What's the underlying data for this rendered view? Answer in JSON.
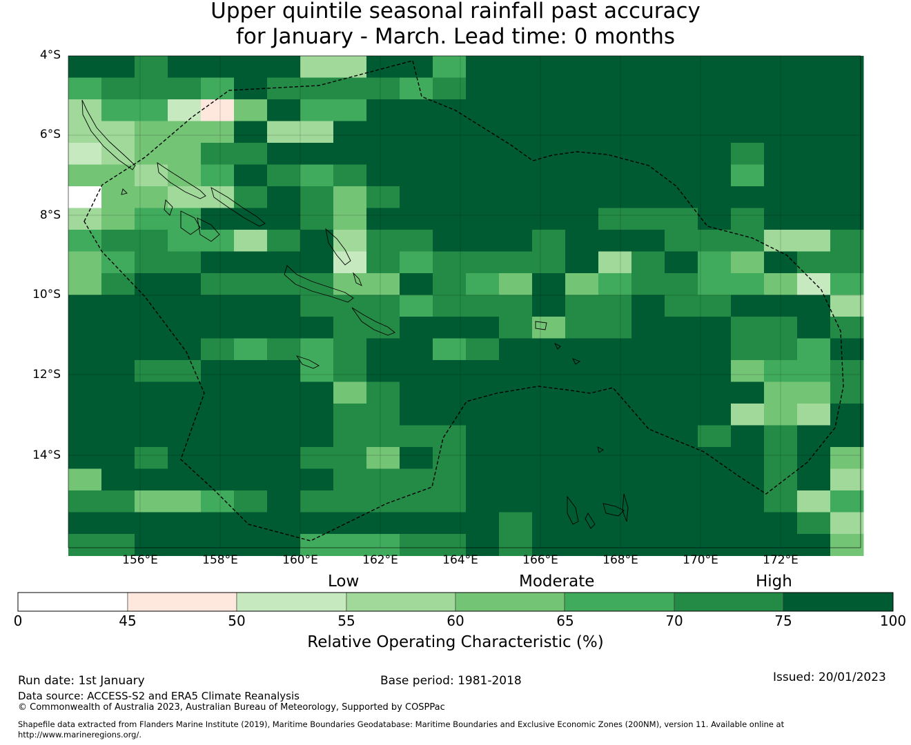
{
  "title_line1": "Upper quintile seasonal rainfall past accuracy",
  "title_line2": "for January - March. Lead time: 0 months",
  "lat_labels": [
    "4°S",
    "6°S",
    "8°S",
    "10°S",
    "12°S",
    "14°S"
  ],
  "lon_labels": [
    "156°E",
    "158°E",
    "160°E",
    "162°E",
    "164°E",
    "166°E",
    "168°E",
    "170°E",
    "172°E"
  ],
  "colorbar": {
    "categories": [
      "Low",
      "Moderate",
      "High"
    ],
    "ticks": [
      "0",
      "45",
      "50",
      "55",
      "60",
      "65",
      "70",
      "75",
      "100"
    ],
    "colors": [
      "#ffffff",
      "#fee8de",
      "#c7e9c0",
      "#a1d99b",
      "#74c476",
      "#41ab5d",
      "#238b45",
      "#005a32"
    ],
    "title": "Relative Operating Characteristic (%)"
  },
  "footer": {
    "run_date": "Run date: 1st January",
    "base_period": "Base period: 1981-2018",
    "issued": "Issued: 20/01/2023",
    "data_source": "Data source: ACCESS-S2 and ERA5 Climate Reanalysis",
    "copyright": "© Commonwealth of Australia 2023, Australian Bureau of Meteorology, Supported by COSPPac",
    "shapefile_line1": "Shapefile data extracted from Flanders Marine Institute (2019), Maritime Boundaries Geodatabase: Maritime Boundaries and Exclusive Economic Zones (200NM), version 11. Available online at",
    "shapefile_line2": "http://www.marineregions.org/."
  },
  "map_data": {
    "lon_range": [
      154.2,
      174.0
    ],
    "lat_range": [
      -3.8,
      -16.1
    ],
    "cell_deg": 0.83,
    "columns": 24,
    "rows": 23,
    "grid": [
      "776777733775777777777777",
      "566657666656777777777777",
      "355214755777777777777777",
      "334447337777777777777777",
      "234466777777777777776777",
      "443457656777777777775777",
      "044336764677777777777777",
      "345577764777777766676777",
      "566553673667776777666336",
      "456677772656666736754766",
      "467766664476547456655425",
      "777777766656667667667773",
      "777777776677764667776676",
      "777765656775677777776657",
      "776677756777777777774556",
      "777777774677777777777446",
      "777777776677777777773437",
      "777777776666777777767677",
      "776777766476777777777674",
      "477777776666777777777673",
      "664456766666777777777635",
      "777777777777767777777763",
      "667777755566767777777774"
    ],
    "color_key": [
      "#ffffff",
      "#fee8de",
      "#c7e9c0",
      "#a1d99b",
      "#74c476",
      "#41ab5d",
      "#238b45",
      "#005a32"
    ]
  }
}
